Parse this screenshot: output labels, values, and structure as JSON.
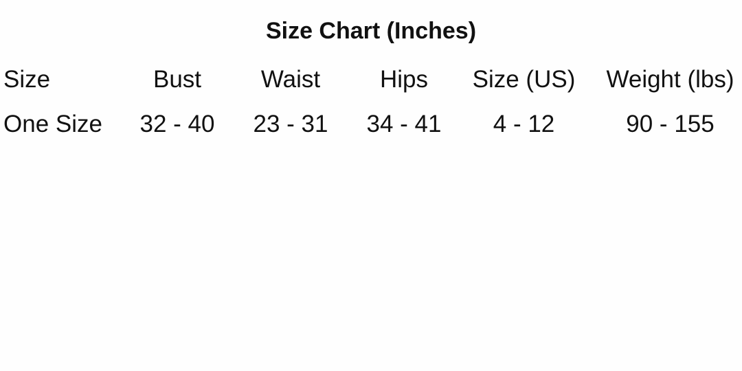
{
  "title": "Size Chart (Inches)",
  "headers": [
    "Size",
    "Bust",
    "Waist",
    "Hips",
    "Size (US)",
    "Weight (lbs)"
  ],
  "rows": [
    [
      "One Size",
      "32 - 40",
      "23 - 31",
      "34 - 41",
      "4 - 12",
      "90 - 155"
    ]
  ]
}
